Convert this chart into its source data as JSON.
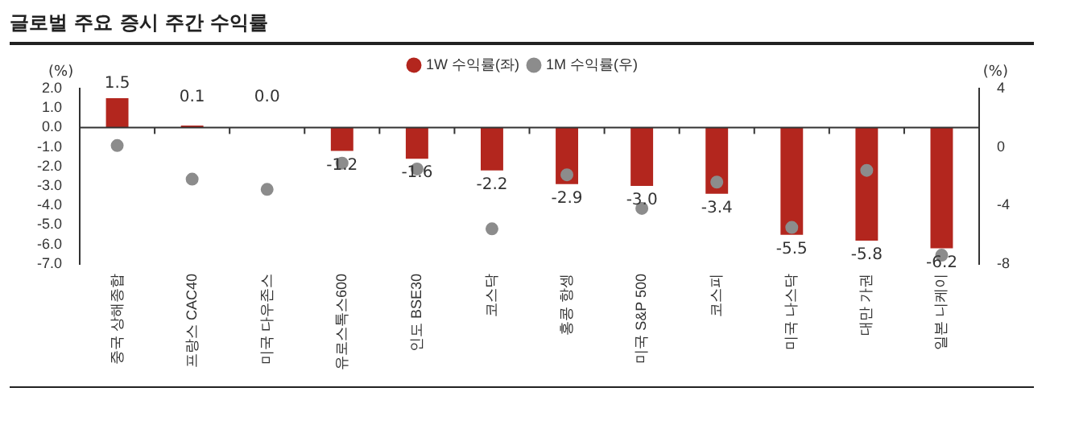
{
  "chart_data": {
    "type": "bar",
    "title": "글로벌 주요 증시 주간 수익률",
    "ylabel": "(%)",
    "y2label": "(%)",
    "categories": [
      "중국 상해종합",
      "프랑스 CAC40",
      "미국 다우존스",
      "유로스톡스600",
      "인도 BSE30",
      "코스닥",
      "홍콩 항셍",
      "미국 S&P 500",
      "코스피",
      "미국 나스닥",
      "대만 가권",
      "일본 니케이"
    ],
    "series": [
      {
        "name": "1W 수익률(좌)",
        "color": "#b3261e",
        "values": [
          1.5,
          0.1,
          0.0,
          -1.2,
          -1.6,
          -2.2,
          -2.9,
          -3.0,
          -3.4,
          -5.5,
          -5.8,
          -6.2
        ],
        "value_labels": [
          "1.5",
          "0.1",
          "0.0",
          "-1.2",
          "-1.6",
          "-2.2",
          "-2.9",
          "-3.0",
          "-3.4",
          "-5.5",
          "-5.8",
          "-6.2"
        ]
      },
      {
        "name": "1M 수익률(우)",
        "type": "scatter",
        "axis": "y2",
        "color": "#8c8c8c",
        "marker": "circle",
        "values": [
          0.1,
          -2.2,
          -2.9,
          -1.1,
          -1.5,
          -5.6,
          -1.9,
          -4.2,
          -2.4,
          -5.5,
          -1.6,
          -7.4
        ]
      }
    ],
    "ylim": [
      -7.0,
      2.0
    ],
    "yticks": [
      {
        "value": 2,
        "label": "2.0"
      },
      {
        "value": 1,
        "label": "1.0"
      },
      {
        "value": 0,
        "label": "0.0"
      },
      {
        "value": -1,
        "label": "-1.0"
      },
      {
        "value": -2,
        "label": "-2.0"
      },
      {
        "value": -3,
        "label": "-3.0"
      },
      {
        "value": -4,
        "label": "-4.0"
      },
      {
        "value": -5,
        "label": "-5.0"
      },
      {
        "value": -6,
        "label": "-6.0"
      },
      {
        "value": -7,
        "label": "-7.0"
      }
    ],
    "y2lim": [
      -8,
      4
    ],
    "y2ticks": [
      4,
      0,
      -4,
      -8
    ],
    "legend": "top"
  }
}
